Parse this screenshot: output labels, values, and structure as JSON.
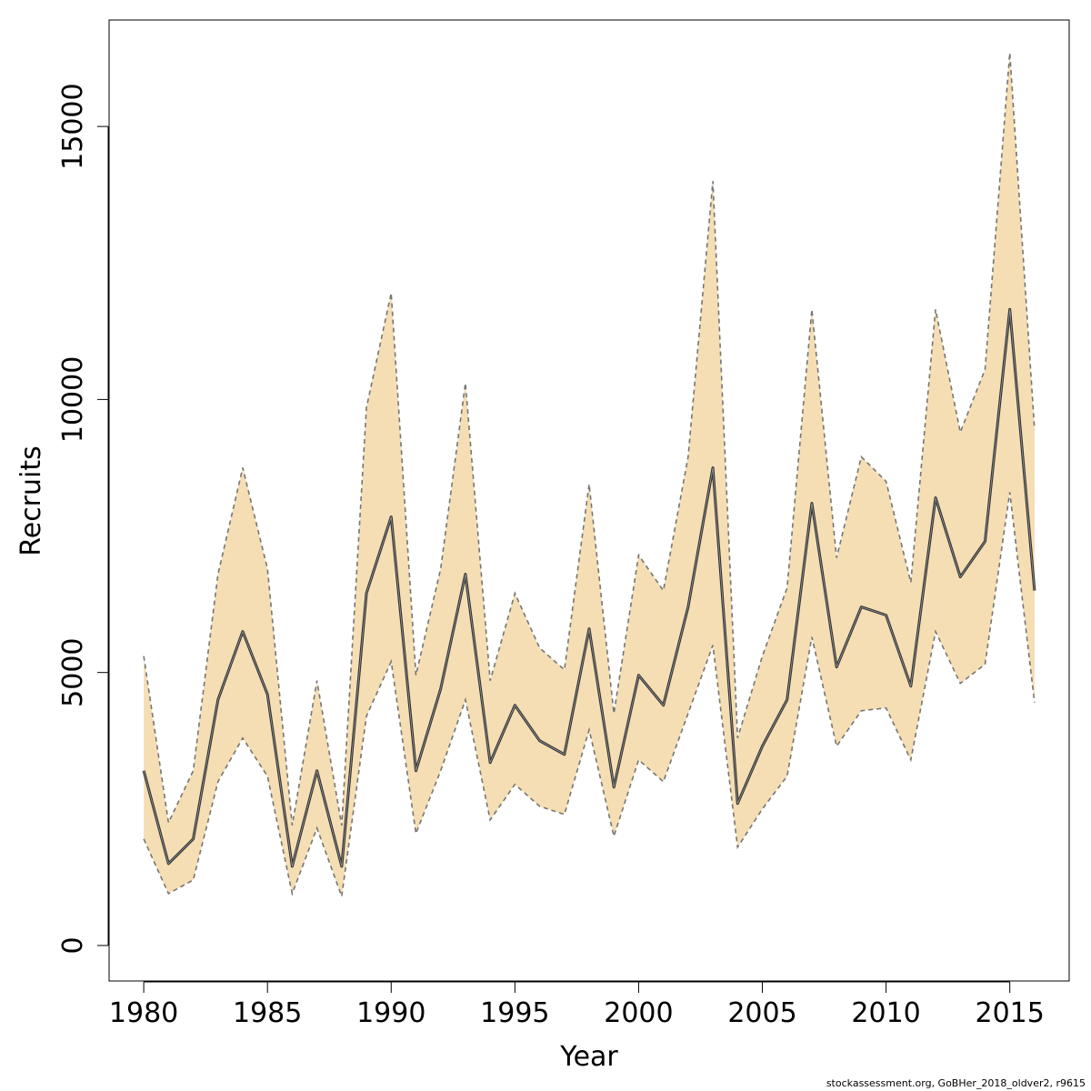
{
  "chart_data": {
    "type": "line",
    "title": "",
    "xlabel": "Year",
    "ylabel": "Recruits",
    "xlim": [
      1978.6,
      2017.4
    ],
    "ylim": [
      -650,
      16950
    ],
    "x_ticks": [
      1980,
      1985,
      1990,
      1995,
      2000,
      2005,
      2010,
      2015
    ],
    "x_tick_labels": [
      "1980",
      "1985",
      "1990",
      "1995",
      "2000",
      "2005",
      "2010",
      "2015"
    ],
    "y_ticks": [
      0,
      5000,
      10000,
      15000
    ],
    "y_tick_labels": [
      "0",
      "5000",
      "10000",
      "15000"
    ],
    "grid": false,
    "legend": "none",
    "colors": {
      "band_fill": "#f5deb3",
      "bound_line": "#757575",
      "estimate_line": "#333333",
      "axis": "#000000"
    },
    "x": [
      1980,
      1981,
      1982,
      1983,
      1984,
      1985,
      1986,
      1987,
      1988,
      1989,
      1990,
      1991,
      1992,
      1993,
      1994,
      1995,
      1996,
      1997,
      1998,
      1999,
      2000,
      2001,
      2002,
      2003,
      2004,
      2005,
      2006,
      2007,
      2008,
      2009,
      2010,
      2011,
      2012,
      2013,
      2014,
      2015,
      2016
    ],
    "series": [
      {
        "name": "Recruits",
        "style": "solid",
        "values": [
          3200,
          1500,
          1950,
          4500,
          5750,
          4600,
          1450,
          3200,
          1450,
          6450,
          7850,
          3200,
          4700,
          6800,
          3350,
          4400,
          3750,
          3500,
          5800,
          2900,
          4950,
          4400,
          6200,
          8750,
          2600,
          3650,
          4500,
          8100,
          5100,
          6200,
          6050,
          4750,
          8200,
          6750,
          7400,
          11650,
          6500
        ]
      },
      {
        "name": "Upper bound",
        "style": "dashed",
        "values": [
          5300,
          2250,
          3200,
          6800,
          8750,
          6900,
          2200,
          4850,
          2200,
          9850,
          11950,
          4950,
          6900,
          10300,
          4850,
          6450,
          5450,
          5050,
          8450,
          4250,
          7150,
          6500,
          8950,
          14000,
          3800,
          5300,
          6550,
          11650,
          7100,
          8950,
          8500,
          6650,
          11650,
          9400,
          10550,
          16350,
          9450
        ]
      },
      {
        "name": "Lower bound",
        "style": "dashed",
        "values": [
          1950,
          950,
          1200,
          3000,
          3800,
          3100,
          950,
          2150,
          900,
          4200,
          5200,
          2050,
          3200,
          4500,
          2300,
          2950,
          2550,
          2400,
          3950,
          2000,
          3400,
          3000,
          4250,
          5500,
          1800,
          2500,
          3100,
          5650,
          3650,
          4300,
          4350,
          3400,
          5750,
          4800,
          5150,
          8300,
          4450
        ]
      }
    ],
    "footer": "stockassessment.org, GoBHer_2018_oldver2, r9615"
  }
}
